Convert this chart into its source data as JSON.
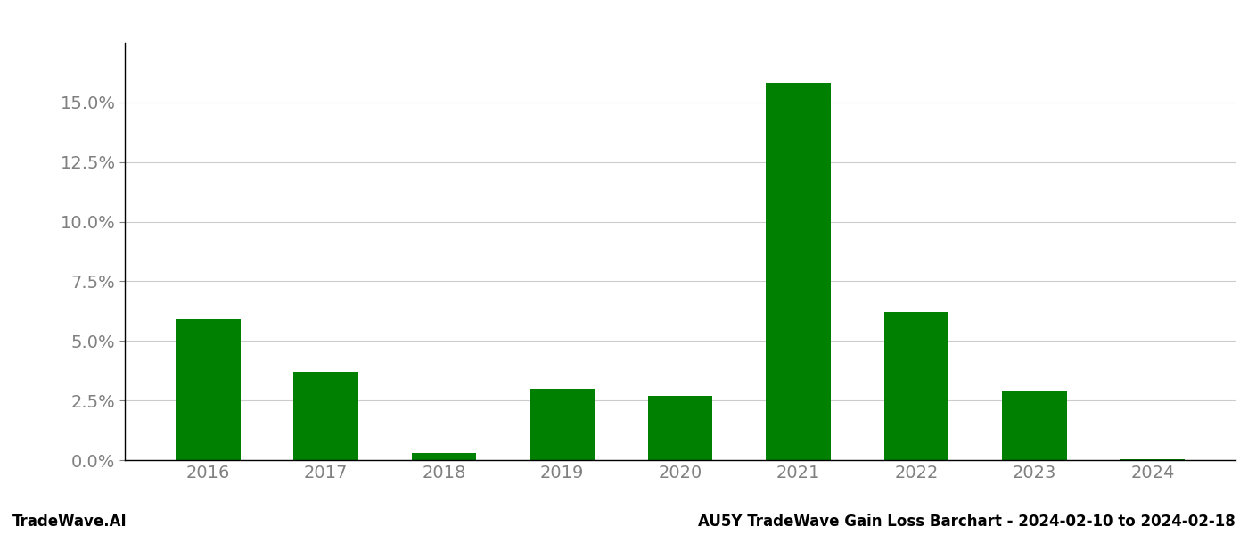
{
  "categories": [
    "2016",
    "2017",
    "2018",
    "2019",
    "2020",
    "2021",
    "2022",
    "2023",
    "2024"
  ],
  "values": [
    0.059,
    0.037,
    0.003,
    0.03,
    0.027,
    0.158,
    0.062,
    0.029,
    0.0002
  ],
  "bar_color": "#008000",
  "footer_left": "TradeWave.AI",
  "footer_right": "AU5Y TradeWave Gain Loss Barchart - 2024-02-10 to 2024-02-18",
  "ylim": [
    0,
    0.175
  ],
  "yticks": [
    0.0,
    0.025,
    0.05,
    0.075,
    0.1,
    0.125,
    0.15
  ],
  "background_color": "#ffffff",
  "grid_color": "#cccccc",
  "bar_width": 0.55,
  "footer_fontsize": 12,
  "tick_fontsize": 14,
  "tick_color": "#808080",
  "spine_color": "#000000"
}
